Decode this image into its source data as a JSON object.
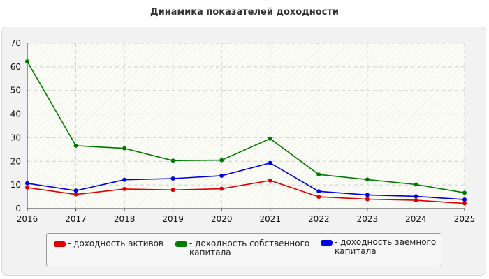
{
  "chart_data": {
    "type": "line",
    "title": "Динамика показателей доходности",
    "x": [
      "2016",
      "2017",
      "2018",
      "2019",
      "2020",
      "2021",
      "2022",
      "2023",
      "2024",
      "2025"
    ],
    "ylim": [
      0,
      70
    ],
    "yticks": [
      0,
      10,
      20,
      30,
      40,
      50,
      60,
      70
    ],
    "grid": true,
    "legend_position": "bottom",
    "series": [
      {
        "name": "- доходность активов",
        "color": "#e00000",
        "values": [
          8.9,
          6.0,
          8.3,
          7.9,
          8.4,
          11.9,
          5.0,
          4.0,
          3.5,
          2.2
        ]
      },
      {
        "name": "- доходность собственного капитала",
        "color": "#007a00",
        "values": [
          62.3,
          26.6,
          25.5,
          20.3,
          20.5,
          29.6,
          14.4,
          12.3,
          10.2,
          6.7
        ]
      },
      {
        "name": "- доходность заемного капитала",
        "color": "#0000e0",
        "values": [
          10.7,
          7.6,
          12.2,
          12.7,
          13.9,
          19.3,
          7.3,
          5.8,
          5.2,
          3.8
        ]
      }
    ]
  }
}
